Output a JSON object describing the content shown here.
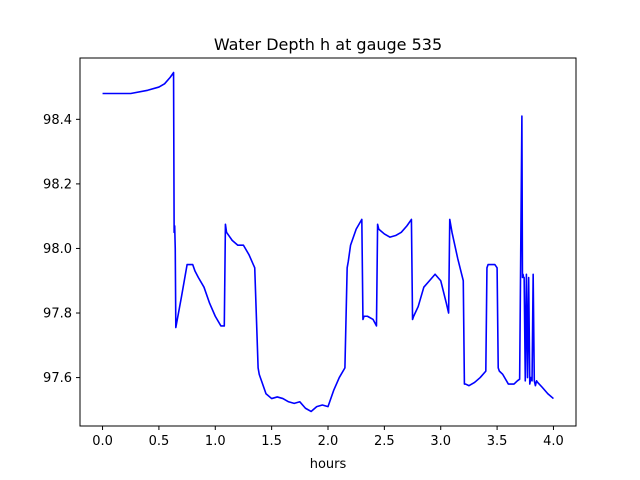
{
  "chart_data": {
    "type": "line",
    "title": "Water Depth h at gauge 535",
    "xlabel": "hours",
    "ylabel": "",
    "xlim": [
      -0.2,
      4.2
    ],
    "ylim": [
      97.45,
      98.59
    ],
    "xticks": [
      0.0,
      0.5,
      1.0,
      1.5,
      2.0,
      2.5,
      3.0,
      3.5,
      4.0
    ],
    "xtick_labels": [
      "0.0",
      "0.5",
      "1.0",
      "1.5",
      "2.0",
      "2.5",
      "3.0",
      "3.5",
      "4.0"
    ],
    "yticks": [
      97.6,
      97.8,
      98.0,
      98.2,
      98.4
    ],
    "ytick_labels": [
      "97.6",
      "97.8",
      "98.0",
      "98.2",
      "98.4"
    ],
    "grid": false,
    "line_color": "#0000ff",
    "series": [
      {
        "x": [
          0.0,
          0.25,
          0.4,
          0.5,
          0.55,
          0.6,
          0.63,
          0.635,
          0.64,
          0.645,
          0.65,
          0.7,
          0.75,
          0.8,
          0.82,
          0.85,
          0.9,
          0.95,
          1.0,
          1.05,
          1.08,
          1.09,
          1.1,
          1.15,
          1.2,
          1.25,
          1.3,
          1.35,
          1.38,
          1.39,
          1.4,
          1.45,
          1.5,
          1.55,
          1.6,
          1.65,
          1.7,
          1.75,
          1.8,
          1.85,
          1.9,
          1.95,
          2.0,
          2.05,
          2.1,
          2.15,
          2.17,
          2.18,
          2.2,
          2.25,
          2.3,
          2.31,
          2.32,
          2.35,
          2.4,
          2.43,
          2.44,
          2.45,
          2.5,
          2.55,
          2.6,
          2.65,
          2.7,
          2.74,
          2.75,
          2.76,
          2.8,
          2.85,
          2.9,
          2.95,
          3.0,
          3.05,
          3.07,
          3.08,
          3.1,
          3.15,
          3.2,
          3.21,
          3.22,
          3.25,
          3.3,
          3.35,
          3.4,
          3.41,
          3.42,
          3.45,
          3.48,
          3.5,
          3.51,
          3.52,
          3.55,
          3.6,
          3.65,
          3.68,
          3.7,
          3.72,
          3.725,
          3.73,
          3.735,
          3.74,
          3.75,
          3.76,
          3.77,
          3.78,
          3.79,
          3.8,
          3.81,
          3.82,
          3.83,
          3.84,
          3.85,
          3.86,
          3.9,
          3.95,
          4.0
        ],
        "values": [
          98.48,
          98.48,
          98.49,
          98.5,
          98.51,
          98.53,
          98.545,
          98.05,
          98.07,
          98.0,
          97.755,
          97.85,
          97.95,
          97.95,
          97.93,
          97.91,
          97.88,
          97.83,
          97.79,
          97.76,
          97.76,
          98.075,
          98.05,
          98.025,
          98.01,
          98.01,
          97.98,
          97.94,
          97.63,
          97.61,
          97.6,
          97.55,
          97.535,
          97.54,
          97.535,
          97.525,
          97.52,
          97.525,
          97.505,
          97.495,
          97.51,
          97.515,
          97.51,
          97.56,
          97.6,
          97.63,
          97.94,
          97.96,
          98.01,
          98.06,
          98.09,
          97.78,
          97.79,
          97.79,
          97.78,
          97.76,
          98.075,
          98.06,
          98.045,
          98.035,
          98.04,
          98.05,
          98.07,
          98.09,
          97.78,
          97.79,
          97.82,
          97.88,
          97.9,
          97.92,
          97.9,
          97.83,
          97.8,
          98.09,
          98.05,
          97.97,
          97.9,
          97.58,
          97.58,
          97.575,
          97.585,
          97.6,
          97.62,
          97.94,
          97.95,
          97.95,
          97.95,
          97.94,
          97.63,
          97.62,
          97.61,
          97.58,
          97.58,
          97.59,
          97.595,
          98.41,
          97.91,
          97.92,
          97.91,
          97.91,
          97.59,
          97.92,
          97.6,
          97.91,
          97.58,
          97.6,
          97.59,
          97.92,
          97.59,
          97.575,
          97.59,
          97.585,
          97.57,
          97.55,
          97.535
        ]
      }
    ]
  }
}
